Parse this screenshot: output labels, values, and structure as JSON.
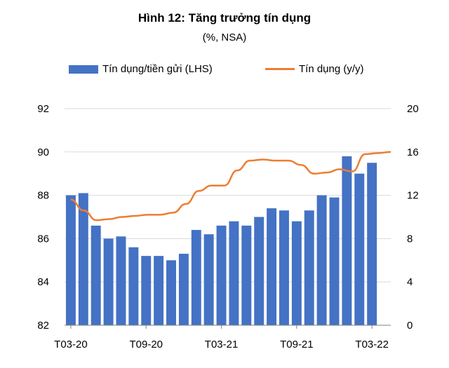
{
  "chart_data": {
    "type": "bar+line",
    "title": "Hình 12: Tăng trưởng tín dụng",
    "subtitle": "(%, NSA)",
    "x_ticks": [
      "T03-20",
      "T09-20",
      "T03-21",
      "T09-21",
      "T03-22"
    ],
    "y_left": {
      "ticks": [
        "82",
        "84",
        "86",
        "88",
        "90",
        "92"
      ],
      "ylim": [
        82,
        92
      ]
    },
    "y_right": {
      "ticks": [
        "0",
        "4",
        "8",
        "12",
        "16",
        "20"
      ],
      "ylim": [
        0,
        20
      ]
    },
    "grid": true,
    "legend_position": "top",
    "series": [
      {
        "name": "Tín dụng/tiền gửi (LHS)",
        "type": "bar",
        "axis": "left",
        "color": "#4472c4",
        "values": [
          88.0,
          88.1,
          86.6,
          86.0,
          86.1,
          85.6,
          85.2,
          85.2,
          85.0,
          85.3,
          86.4,
          86.2,
          86.6,
          86.8,
          86.6,
          87.0,
          87.4,
          87.3,
          86.8,
          87.3,
          88.0,
          87.9,
          89.8,
          89.0,
          89.5
        ]
      },
      {
        "name": "Tín dụng (y/y)",
        "type": "line",
        "axis": "right",
        "color": "#ed7d31",
        "values": [
          11.6,
          10.6,
          9.7,
          9.8,
          10.0,
          10.1,
          10.2,
          10.2,
          10.4,
          11.2,
          12.4,
          12.9,
          12.9,
          14.3,
          15.2,
          15.3,
          15.2,
          15.2,
          14.8,
          14.0,
          14.1,
          14.4,
          14.2,
          15.8,
          15.9,
          16.0
        ]
      }
    ]
  }
}
